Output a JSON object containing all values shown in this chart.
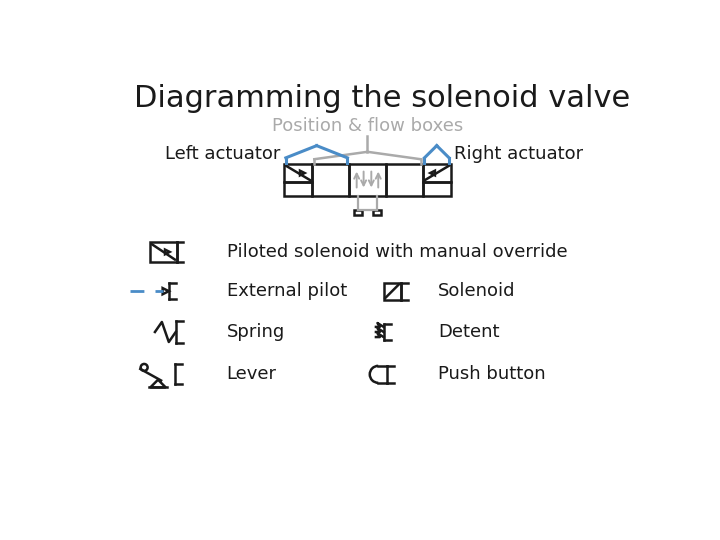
{
  "title": "Diagramming the solenoid valve",
  "title_fontsize": 22,
  "subtitle": "Position & flow boxes",
  "subtitle_color": "#aaaaaa",
  "subtitle_fontsize": 13,
  "left_actuator_label": "Left actuator",
  "right_actuator_label": "Right actuator",
  "label_fontsize": 13,
  "blue_color": "#4a8cc7",
  "gray_color": "#aaaaaa",
  "black_color": "#1a1a1a",
  "bg_color": "#ffffff",
  "legend_items": [
    {
      "symbol": "piloted_solenoid",
      "label": "Piloted solenoid with manual override"
    },
    {
      "symbol": "external_pilot",
      "label": "External pilot"
    },
    {
      "symbol": "spring",
      "label": "Spring"
    },
    {
      "symbol": "lever",
      "label": "Lever"
    },
    {
      "symbol": "solenoid",
      "label": "Solenoid"
    },
    {
      "symbol": "detent",
      "label": "Detent"
    },
    {
      "symbol": "push_button",
      "label": "Push button"
    }
  ],
  "legend_fontsize": 13
}
